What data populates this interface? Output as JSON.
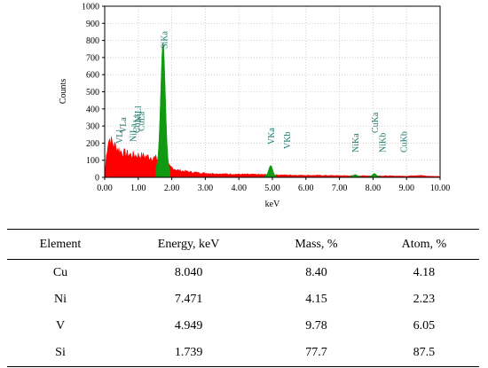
{
  "chart_data": {
    "type": "area",
    "xlabel": "keV",
    "ylabel": "Counts",
    "xlim": [
      0,
      10
    ],
    "ylim": [
      0,
      1000
    ],
    "x_ticks": [
      "0.00",
      "1.00",
      "2.00",
      "3.00",
      "4.00",
      "5.00",
      "6.00",
      "7.00",
      "8.00",
      "9.00",
      "10.00"
    ],
    "y_ticks": [
      "0",
      "100",
      "200",
      "300",
      "400",
      "500",
      "600",
      "700",
      "800",
      "900",
      "1000"
    ],
    "grid": "dotted",
    "colors": {
      "background_spectrum": "#ff0000",
      "peak_fill": "#119911",
      "label": "#1f7a6c"
    },
    "peak_labels": [
      {
        "text": "VLl",
        "x": 0.45
      },
      {
        "text": "VLa",
        "x": 0.56
      },
      {
        "text": "NiLa",
        "x": 0.86
      },
      {
        "text": "CuLl",
        "x": 0.96
      },
      {
        "text": "NiLl",
        "x": 1.0
      },
      {
        "text": "CuLa",
        "x": 1.1
      },
      {
        "text": "SiKa",
        "x": 1.78
      },
      {
        "text": "VKa",
        "x": 4.98
      },
      {
        "text": "VKb",
        "x": 5.45
      },
      {
        "text": "NiKa",
        "x": 7.49
      },
      {
        "text": "CuKa",
        "x": 8.07
      },
      {
        "text": "NiKb",
        "x": 8.3
      },
      {
        "text": "CuKb",
        "x": 8.93
      }
    ],
    "peaks": [
      {
        "element": "Si",
        "x": 1.739,
        "height": 740,
        "width": 0.07,
        "color": "#119911"
      },
      {
        "element": "V",
        "x": 4.949,
        "height": 62,
        "width": 0.06,
        "color": "#119911"
      },
      {
        "element": "Ni",
        "x": 7.471,
        "height": 12,
        "width": 0.06,
        "color": "#119911"
      },
      {
        "element": "Cu",
        "x": 8.04,
        "height": 18,
        "width": 0.06,
        "color": "#119911"
      }
    ],
    "background_points": [
      [
        0.0,
        0
      ],
      [
        0.06,
        150
      ],
      [
        0.1,
        210
      ],
      [
        0.15,
        225
      ],
      [
        0.22,
        200
      ],
      [
        0.3,
        185
      ],
      [
        0.4,
        165
      ],
      [
        0.5,
        148
      ],
      [
        0.6,
        140
      ],
      [
        0.8,
        130
      ],
      [
        1.0,
        128
      ],
      [
        1.2,
        122
      ],
      [
        1.4,
        118
      ],
      [
        1.6,
        105
      ],
      [
        1.75,
        95
      ],
      [
        1.95,
        60
      ],
      [
        2.2,
        40
      ],
      [
        2.6,
        30
      ],
      [
        3.0,
        24
      ],
      [
        3.5,
        20
      ],
      [
        4.0,
        18
      ],
      [
        4.5,
        17
      ],
      [
        5.0,
        15
      ],
      [
        5.5,
        13
      ],
      [
        6.0,
        12
      ],
      [
        6.5,
        11
      ],
      [
        7.0,
        10
      ],
      [
        7.5,
        9
      ],
      [
        8.0,
        9
      ],
      [
        8.5,
        8
      ],
      [
        9.0,
        7
      ],
      [
        9.4,
        12
      ],
      [
        9.6,
        7
      ],
      [
        10.0,
        5
      ]
    ]
  },
  "table": {
    "headers": [
      "Element",
      "Energy, keV",
      "Mass, %",
      "Atom, %"
    ],
    "rows": [
      [
        "Cu",
        "8.040",
        "8.40",
        "4.18"
      ],
      [
        "Ni",
        "7.471",
        "4.15",
        "2.23"
      ],
      [
        "V",
        "4.949",
        "9.78",
        "6.05"
      ],
      [
        "Si",
        "1.739",
        "77.7",
        "87.5"
      ]
    ]
  }
}
